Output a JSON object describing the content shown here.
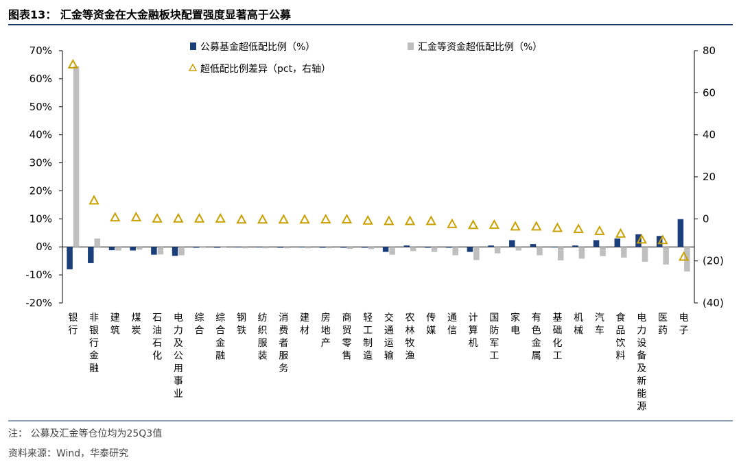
{
  "header": {
    "title": "图表13：  汇金等资金在大金融板块配置强度显著高于公募"
  },
  "footer": {
    "note": "注：  公募及汇金等仓位均为25Q3值",
    "source": "资料来源：Wind，华泰研究"
  },
  "colors": {
    "fund": "#1a3f7a",
    "huijin": "#bfbfbf",
    "diff": "#c9a000"
  },
  "chart_data": {
    "type": "bar",
    "title": "",
    "categories": [
      "银行",
      "非银行金融",
      "建筑",
      "煤炭",
      "石油石化",
      "电力及公用事业",
      "综合",
      "综合金融",
      "钢铁",
      "纺织服装",
      "消费者服务",
      "建材",
      "房地产",
      "商贸零售",
      "轻工制造",
      "交通运输",
      "农林牧渔",
      "传媒",
      "通信",
      "计算机",
      "国防军工",
      "家电",
      "有色金属",
      "基础化工",
      "机械",
      "汽车",
      "食品饮料",
      "电力设备及新能源",
      "医药",
      "电子"
    ],
    "series": [
      {
        "name": "公募基金超低配比例（%）",
        "axis": "left",
        "kind": "bar",
        "values": [
          -8.0,
          -5.8,
          -1.2,
          -1.3,
          -2.8,
          -3.2,
          -0.3,
          -0.3,
          -0.2,
          -0.2,
          -0.3,
          -0.2,
          -0.3,
          -0.3,
          -0.3,
          -1.8,
          0.5,
          -0.3,
          -0.3,
          -1.8,
          0.5,
          2.4,
          1.0,
          -0.2,
          0.5,
          2.4,
          3.0,
          4.5,
          3.9,
          9.9
        ]
      },
      {
        "name": "汇金等资金超低配比例（%）",
        "axis": "left",
        "kind": "bar",
        "values": [
          64.5,
          3.0,
          -1.3,
          -1.0,
          -2.7,
          -3.0,
          -0.3,
          -0.3,
          -0.5,
          -0.5,
          -0.5,
          -0.5,
          -0.5,
          -0.7,
          -0.8,
          -2.8,
          -1.5,
          -1.8,
          -3.0,
          -4.7,
          -2.3,
          -1.3,
          -3.0,
          -4.8,
          -4.2,
          -3.3,
          -3.8,
          -5.3,
          -6.3,
          -8.8
        ]
      },
      {
        "name": "超低配比例差异（pct，右轴）",
        "axis": "right",
        "kind": "marker",
        "values": [
          73.5,
          8.8,
          0.7,
          0.8,
          0.2,
          0.2,
          0.2,
          0.2,
          -0.3,
          -0.3,
          -0.3,
          -0.3,
          -0.2,
          -0.2,
          -0.8,
          -1.0,
          -1.0,
          -1.0,
          -2.4,
          -2.9,
          -2.8,
          -3.6,
          -3.6,
          -4.3,
          -4.8,
          -5.7,
          -7.0,
          -9.8,
          -10.1,
          -18.0
        ]
      }
    ],
    "ylim_left": [
      -20,
      70
    ],
    "yticks_left": [
      "-20%",
      "-10%",
      "0%",
      "10%",
      "20%",
      "30%",
      "40%",
      "50%",
      "60%",
      "70%"
    ],
    "ylim_right": [
      -40,
      80
    ],
    "yticks_right": [
      "(40)",
      "(20)",
      "0",
      "20",
      "40",
      "60",
      "80"
    ],
    "grid": false,
    "legend": "top"
  }
}
